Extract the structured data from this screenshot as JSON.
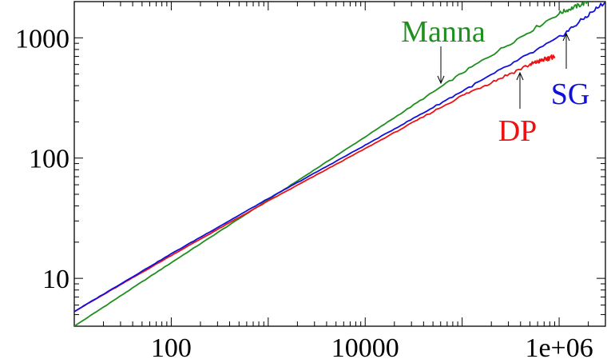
{
  "chart_data": {
    "type": "line",
    "title": "",
    "xlabel": "",
    "ylabel": "",
    "x_scale": "log",
    "y_scale": "log",
    "xlim": [
      10,
      3000000
    ],
    "ylim": [
      4,
      2000
    ],
    "grid": false,
    "x_ticks": [
      {
        "value": 100,
        "label": "100"
      },
      {
        "value": 10000,
        "label": "10000"
      },
      {
        "value": 1000000,
        "label": "1e+06"
      }
    ],
    "y_ticks": [
      {
        "value": 10,
        "label": "10"
      },
      {
        "value": 100,
        "label": "100"
      },
      {
        "value": 1000,
        "label": "1000"
      }
    ],
    "series": [
      {
        "name": "Manna",
        "color": "#1f8f1f",
        "x": [
          10,
          100,
          1000,
          10000,
          100000,
          1000000,
          2000000
        ],
        "y": [
          4,
          13.5,
          45,
          150,
          510,
          1600,
          2000
        ]
      },
      {
        "name": "DP",
        "color": "#ee1111",
        "x": [
          10,
          100,
          1000,
          10000,
          100000,
          500000,
          700000,
          900000
        ],
        "y": [
          5.3,
          15.5,
          44,
          120,
          330,
          600,
          660,
          700
        ]
      },
      {
        "name": "SG",
        "color": "#1111dd",
        "x": [
          10,
          100,
          1000,
          10000,
          100000,
          1000000,
          3000000
        ],
        "y": [
          5.3,
          16,
          46,
          128,
          360,
          1000,
          2000
        ]
      }
    ],
    "annotations": [
      {
        "text": "Manna",
        "color": "#1f8f1f",
        "points_to_series": "Manna"
      },
      {
        "text": "DP",
        "color": "#ee1111",
        "points_to_series": "DP"
      },
      {
        "text": "SG",
        "color": "#1111dd",
        "points_to_series": "SG"
      }
    ]
  }
}
